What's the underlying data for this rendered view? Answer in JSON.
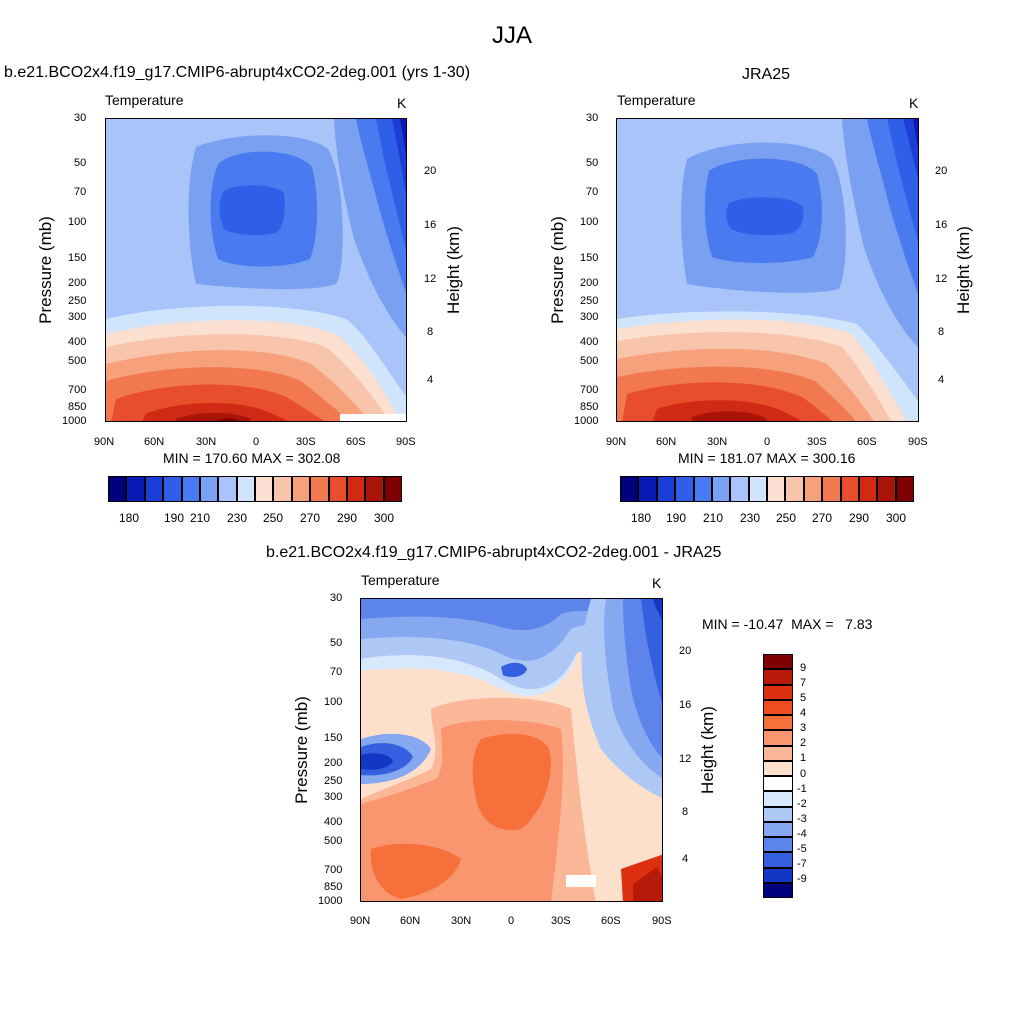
{
  "main_title": "JJA",
  "chart_data": [
    {
      "type": "heatmap",
      "title": "b.e21.BCO2x4.f19_g17.CMIP6-abrupt4xCO2-2deg.001 (yrs 1-30)",
      "subtitle_left": "Temperature",
      "subtitle_right": "K",
      "xlabel": "",
      "ylabel": "Pressure (mb)",
      "ylabel_right": "Height (km)",
      "x_ticks": [
        "90N",
        "60N",
        "30N",
        "0",
        "30S",
        "60S",
        "90S"
      ],
      "y_ticks": [
        "30",
        "50",
        "70",
        "100",
        "150",
        "200",
        "250",
        "300",
        "400",
        "500",
        "700",
        "850",
        "1000"
      ],
      "y_ticks_right": [
        "20",
        "16",
        "12",
        "8",
        "4"
      ],
      "min_max_text": "MIN = 170.60  MAX = 302.08",
      "min": 170.6,
      "max": 302.08,
      "colorbar_labels": [
        "180",
        "190",
        "210",
        "230",
        "250",
        "270",
        "290",
        "300"
      ]
    },
    {
      "type": "heatmap",
      "title": "JRA25",
      "subtitle_left": "Temperature",
      "subtitle_right": "K",
      "xlabel": "",
      "ylabel": "Pressure (mb)",
      "ylabel_right": "Height (km)",
      "x_ticks": [
        "90N",
        "60N",
        "30N",
        "0",
        "30S",
        "60S",
        "90S"
      ],
      "y_ticks": [
        "30",
        "50",
        "70",
        "100",
        "150",
        "200",
        "250",
        "300",
        "400",
        "500",
        "700",
        "850",
        "1000"
      ],
      "y_ticks_right": [
        "20",
        "16",
        "12",
        "8",
        "4"
      ],
      "min_max_text": "MIN = 181.07  MAX = 300.16",
      "min": 181.07,
      "max": 300.16,
      "colorbar_labels": [
        "180",
        "190",
        "210",
        "230",
        "250",
        "270",
        "290",
        "300"
      ]
    },
    {
      "type": "heatmap",
      "title": "b.e21.BCO2x4.f19_g17.CMIP6-abrupt4xCO2-2deg.001 - JRA25",
      "subtitle_left": "Temperature",
      "subtitle_right": "K",
      "xlabel": "",
      "ylabel": "Pressure (mb)",
      "ylabel_right": "Height (km)",
      "x_ticks": [
        "90N",
        "60N",
        "30N",
        "0",
        "30S",
        "60S",
        "90S"
      ],
      "y_ticks": [
        "30",
        "50",
        "70",
        "100",
        "150",
        "200",
        "250",
        "300",
        "400",
        "500",
        "700",
        "850",
        "1000"
      ],
      "y_ticks_right": [
        "20",
        "16",
        "12",
        "8",
        "4"
      ],
      "min_max_text": "MIN = -10.47  MAX =   7.83",
      "min": -10.47,
      "max": 7.83,
      "colorbar_labels": [
        "9",
        "7",
        "5",
        "4",
        "3",
        "2",
        "1",
        "0",
        "-1",
        "-2",
        "-3",
        "-4",
        "-5",
        "-7",
        "-9"
      ]
    }
  ],
  "colors": {
    "abs_scale": [
      "#00007f",
      "#0a1bb5",
      "#1c3ed6",
      "#2f5ee8",
      "#4a7af0",
      "#7aa0f2",
      "#a8c4f8",
      "#d0e4fb",
      "#fbe0d2",
      "#f9c4ac",
      "#f6a07c",
      "#f27850",
      "#e84e2c",
      "#d02a14",
      "#a81408",
      "#7f0000"
    ],
    "diff_scale": [
      "#7f0000",
      "#b81a0a",
      "#dc3010",
      "#f04c22",
      "#f6703c",
      "#f99670",
      "#fbb898",
      "#fde0cc",
      "#ffffff",
      "#d6e8fb",
      "#aec8f6",
      "#86a8f0",
      "#5c84ea",
      "#3460e0",
      "#1436c4",
      "#00007f"
    ]
  }
}
